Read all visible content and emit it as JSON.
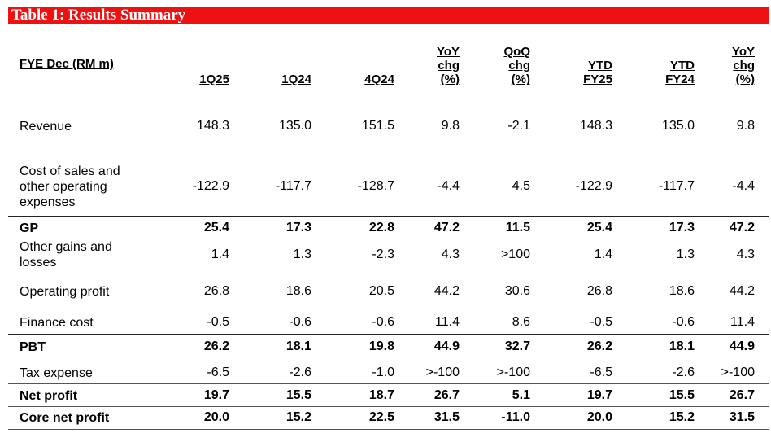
{
  "title": "Table 1: Results Summary",
  "header": {
    "label": "FYE Dec (RM m)",
    "columns": [
      [
        "1Q25"
      ],
      [
        "1Q24"
      ],
      [
        "4Q24"
      ],
      [
        "YoY",
        "chg",
        "(%)"
      ],
      [
        "QoQ",
        "chg",
        "(%)"
      ],
      [
        "YTD",
        "FY25"
      ],
      [
        "YTD",
        "FY24"
      ],
      [
        "YoY",
        "chg",
        "(%)"
      ]
    ]
  },
  "rows": [
    {
      "label": [
        "Revenue"
      ],
      "values": [
        "148.3",
        "135.0",
        "151.5",
        "9.8",
        "-2.1",
        "148.3",
        "135.0",
        "9.8"
      ],
      "bold": false
    },
    {
      "label": [
        "Cost of sales and",
        "other operating",
        "expenses"
      ],
      "values": [
        "-122.9",
        "-117.7",
        "-128.7",
        "-4.4",
        "4.5",
        "-122.9",
        "-117.7",
        "-4.4"
      ],
      "bold": false
    },
    {
      "label": [
        "GP"
      ],
      "values": [
        "25.4",
        "17.3",
        "22.8",
        "47.2",
        "11.5",
        "25.4",
        "17.3",
        "47.2"
      ],
      "bold": true
    },
    {
      "label": [
        "Other gains and",
        "losses"
      ],
      "values": [
        "1.4",
        "1.3",
        "-2.3",
        "4.3",
        ">100",
        "1.4",
        "1.3",
        "4.3"
      ],
      "bold": false
    },
    {
      "label": [
        "Operating profit"
      ],
      "values": [
        "26.8",
        "18.6",
        "20.5",
        "44.2",
        "30.6",
        "26.8",
        "18.6",
        "44.2"
      ],
      "bold": false
    },
    {
      "label": [
        "Finance cost"
      ],
      "values": [
        "-0.5",
        "-0.6",
        "-0.6",
        "11.4",
        "8.6",
        "-0.5",
        "-0.6",
        "11.4"
      ],
      "bold": false
    },
    {
      "label": [
        "PBT"
      ],
      "values": [
        "26.2",
        "18.1",
        "19.8",
        "44.9",
        "32.7",
        "26.2",
        "18.1",
        "44.9"
      ],
      "bold": true
    },
    {
      "label": [
        "Tax expense"
      ],
      "values": [
        "-6.5",
        "-2.6",
        "-1.0",
        ">-100",
        ">-100",
        "-6.5",
        "-2.6",
        ">-100"
      ],
      "bold": false
    },
    {
      "label": [
        "Net profit"
      ],
      "values": [
        "19.7",
        "15.5",
        "18.7",
        "26.7",
        "5.1",
        "19.7",
        "15.5",
        "26.7"
      ],
      "bold": true
    },
    {
      "label": [
        "Core net profit"
      ],
      "values": [
        "20.0",
        "15.2",
        "22.5",
        "31.5",
        "-11.0",
        "20.0",
        "15.2",
        "31.5"
      ],
      "bold": true
    }
  ]
}
